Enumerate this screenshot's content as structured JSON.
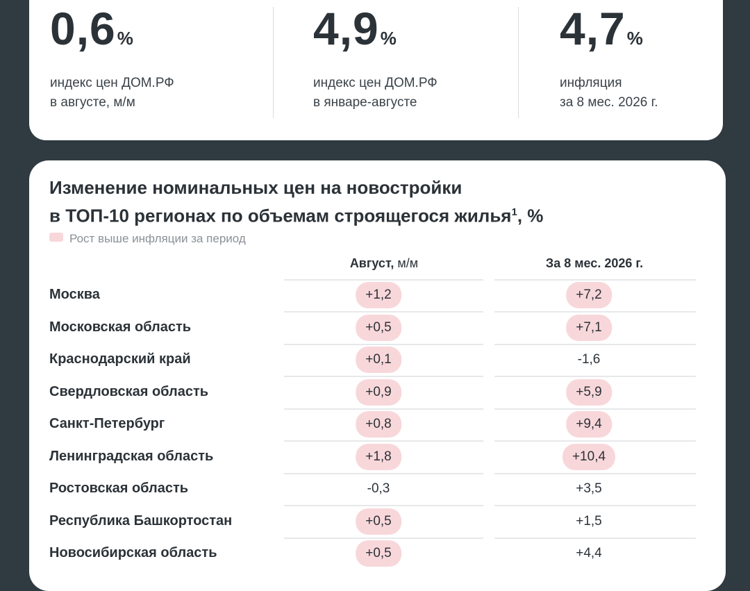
{
  "stats": [
    {
      "value": "0,6",
      "unit": "%",
      "desc_line1": "индекс цен ДОМ.РФ",
      "desc_line2": "в августе, м/м"
    },
    {
      "value": "4,9",
      "unit": "%",
      "desc_line1": "индекс цен ДОМ.РФ",
      "desc_line2": "в январе-августе"
    },
    {
      "value": "4,7",
      "unit": "%",
      "desc_line1": "инфляция",
      "desc_line2": "за 8 мес. 2026 г."
    }
  ],
  "table": {
    "title_line1": "Изменение номинальных цен на новостройки",
    "title_line2": "в ТОП-10 регионах по объемам строящегося жилья",
    "title_footnote": "1",
    "title_suffix": ", %",
    "legend": "Рост выше инфляции за период",
    "col1_header_bold": "Август,",
    "col1_header_light": " м/м",
    "col2_header": "За 8 мес. 2026 г.",
    "rows": [
      {
        "region": "Москва",
        "aug": "+1,2",
        "aug_hl": true,
        "ytd": "+7,2",
        "ytd_hl": true
      },
      {
        "region": "Московская область",
        "aug": "+0,5",
        "aug_hl": true,
        "ytd": "+7,1",
        "ytd_hl": true
      },
      {
        "region": "Краснодарский край",
        "aug": "+0,1",
        "aug_hl": true,
        "ytd": "-1,6",
        "ytd_hl": false
      },
      {
        "region": "Свердловская область",
        "aug": "+0,9",
        "aug_hl": true,
        "ytd": "+5,9",
        "ytd_hl": true
      },
      {
        "region": "Санкт-Петербург",
        "aug": "+0,8",
        "aug_hl": true,
        "ytd": "+9,4",
        "ytd_hl": true
      },
      {
        "region": "Ленинградская область",
        "aug": "+1,8",
        "aug_hl": true,
        "ytd": "+10,4",
        "ytd_hl": true
      },
      {
        "region": "Ростовская область",
        "aug": "-0,3",
        "aug_hl": false,
        "ytd": "+3,5",
        "ytd_hl": false
      },
      {
        "region": "Республика Башкортостан",
        "aug": "+0,5",
        "aug_hl": true,
        "ytd": "+1,5",
        "ytd_hl": false
      },
      {
        "region": "Новосибирская область",
        "aug": "+0,5",
        "aug_hl": true,
        "ytd": "+4,4",
        "ytd_hl": false
      }
    ]
  },
  "colors": {
    "background": "#2f3a41",
    "card": "#ffffff",
    "highlight": "#f8d7da",
    "text": "#2b3238"
  }
}
